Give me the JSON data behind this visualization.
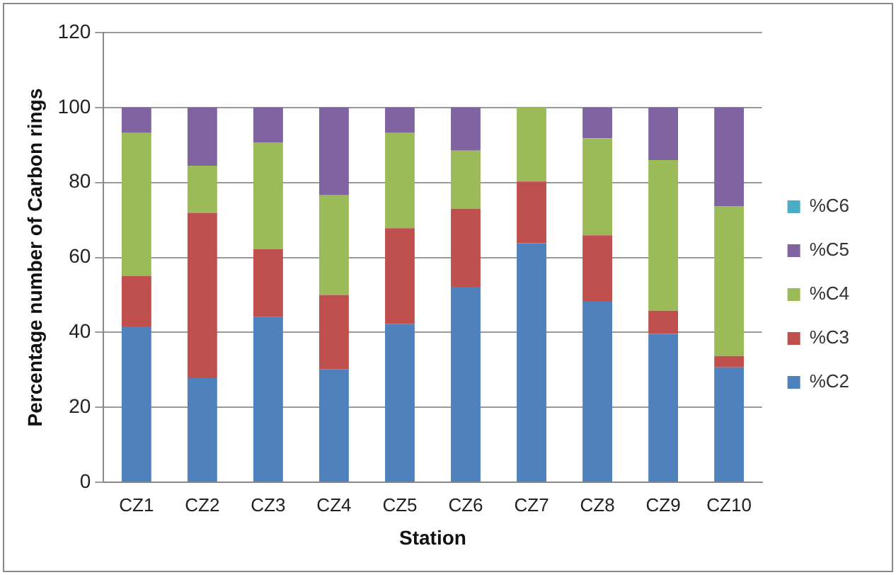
{
  "chart_data": {
    "type": "bar",
    "stacked": true,
    "xlabel": "Station",
    "ylabel": "Percentage number of Carbon rings",
    "categories": [
      "CZ1",
      "CZ2",
      "CZ3",
      "CZ4",
      "CZ5",
      "CZ6",
      "CZ7",
      "CZ8",
      "CZ9",
      "CZ10"
    ],
    "series": [
      {
        "name": "%C2",
        "color": "#4f81bd",
        "values": [
          41.6,
          27.8,
          44.1,
          30.1,
          42.3,
          52.2,
          63.8,
          48.2,
          39.6,
          30.7
        ]
      },
      {
        "name": "%C3",
        "color": "#c0504d",
        "values": [
          13.5,
          44.1,
          18.1,
          19.9,
          25.5,
          20.8,
          16.5,
          17.7,
          6.2,
          3.0
        ]
      },
      {
        "name": "%C4",
        "color": "#9bbb59",
        "values": [
          38.1,
          12.6,
          28.5,
          26.6,
          25.4,
          15.5,
          19.7,
          25.9,
          40.2,
          40.0
        ]
      },
      {
        "name": "%C5",
        "color": "#8064a2",
        "values": [
          6.8,
          15.5,
          9.3,
          23.4,
          6.8,
          11.5,
          0,
          8.2,
          14.0,
          26.3
        ]
      },
      {
        "name": "%C6",
        "color": "#4bacc6",
        "values": [
          0,
          0,
          0,
          0,
          0,
          0,
          0,
          0,
          0,
          0
        ]
      }
    ],
    "ylim": [
      0,
      120
    ],
    "yticks": [
      0,
      20,
      40,
      60,
      80,
      100,
      120
    ],
    "grid": "y",
    "legend": "right"
  }
}
